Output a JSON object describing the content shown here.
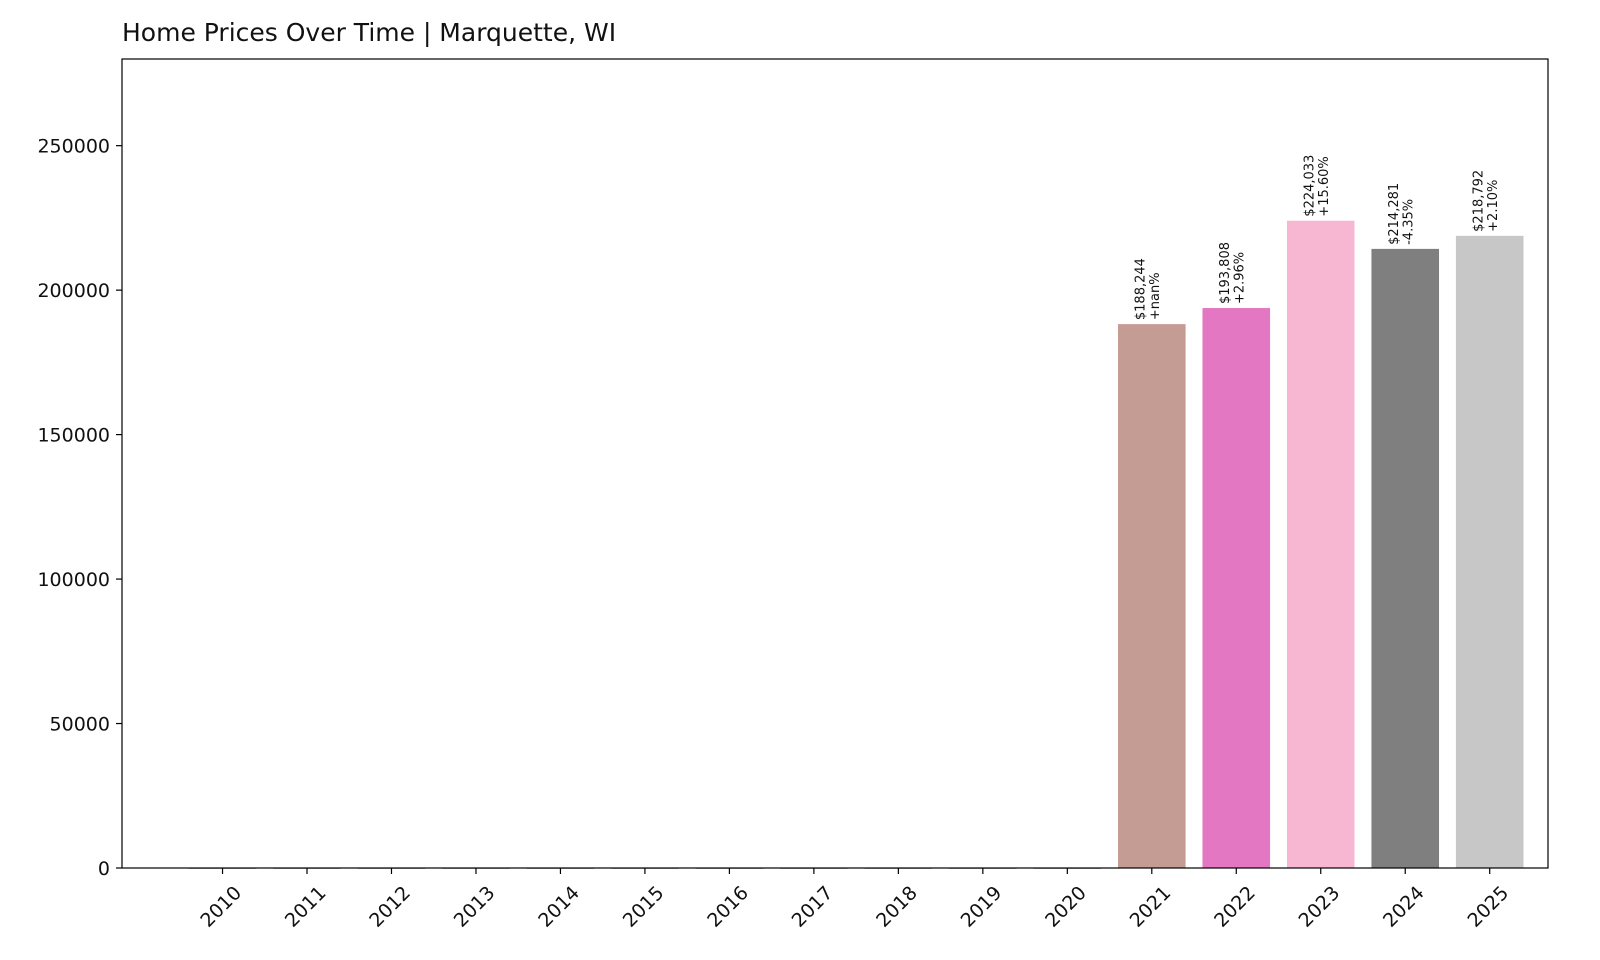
{
  "chart_data": {
    "type": "bar",
    "title": "Home Prices Over Time | Marquette, WI",
    "xlabel": "",
    "ylabel": "",
    "categories": [
      "2010",
      "2011",
      "2012",
      "2013",
      "2014",
      "2015",
      "2016",
      "2017",
      "2018",
      "2019",
      "2020",
      "2021",
      "2022",
      "2023",
      "2024",
      "2025"
    ],
    "values": [
      0,
      0,
      0,
      0,
      0,
      0,
      0,
      0,
      0,
      0,
      0,
      188244,
      193808,
      224033,
      214281,
      218792
    ],
    "bar_labels": [
      null,
      null,
      null,
      null,
      null,
      null,
      null,
      null,
      null,
      null,
      null,
      [
        "$188,244",
        "+nan%"
      ],
      [
        "$193,808",
        "+2.96%"
      ],
      [
        "$224,033",
        "+15.60%"
      ],
      [
        "$214,281",
        "-4.35%"
      ],
      [
        "$218,792",
        "+2.10%"
      ]
    ],
    "colors": [
      "#1f77b4",
      "#ff7f0e",
      "#2ca02c",
      "#d62728",
      "#9467bd",
      "#8c564b",
      "#e377c2",
      "#7f7f7f",
      "#bcbd22",
      "#17becf",
      "#1f77b4",
      "#c49c94",
      "#e377c2",
      "#f7b6d2",
      "#7f7f7f",
      "#c7c7c7"
    ],
    "yticks": [
      0,
      50000,
      100000,
      150000,
      200000,
      250000
    ],
    "ylim": [
      0,
      280000
    ],
    "grid": false,
    "legend": "none"
  }
}
